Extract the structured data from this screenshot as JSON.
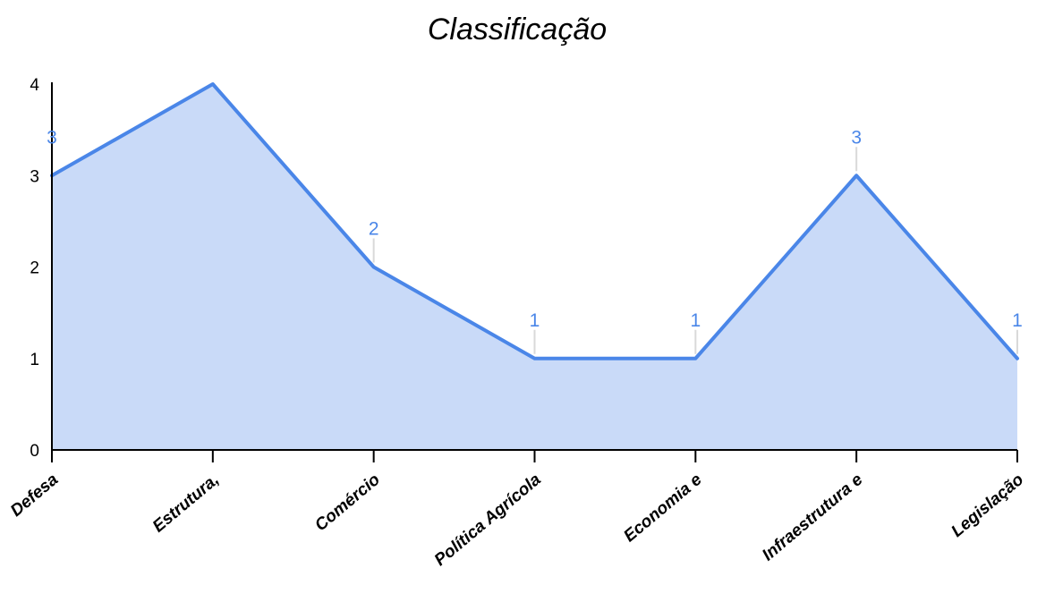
{
  "chart_data": {
    "type": "area",
    "title": "Classificação",
    "xlabel": "",
    "ylabel": "",
    "categories": [
      "Defesa",
      "Estrutura,",
      "Comércio",
      "Política Agrícola",
      "Economia e",
      "Infraestrutura e",
      "Legislação"
    ],
    "series": [
      {
        "values": [
          3,
          4,
          2,
          1,
          1,
          3,
          1
        ],
        "data_labels": [
          "3",
          "",
          "2",
          "1",
          "1",
          "3",
          "1"
        ]
      }
    ],
    "ylim": [
      0,
      4
    ],
    "yticks": [
      "0",
      "1",
      "2",
      "3",
      "4"
    ],
    "grid": false,
    "legend": "none",
    "colors": {
      "line": "#4a86e8",
      "fill": "#c9daf8",
      "label": "#4a86e8",
      "leader": "#d9d9d9",
      "axis": "#000000"
    }
  }
}
